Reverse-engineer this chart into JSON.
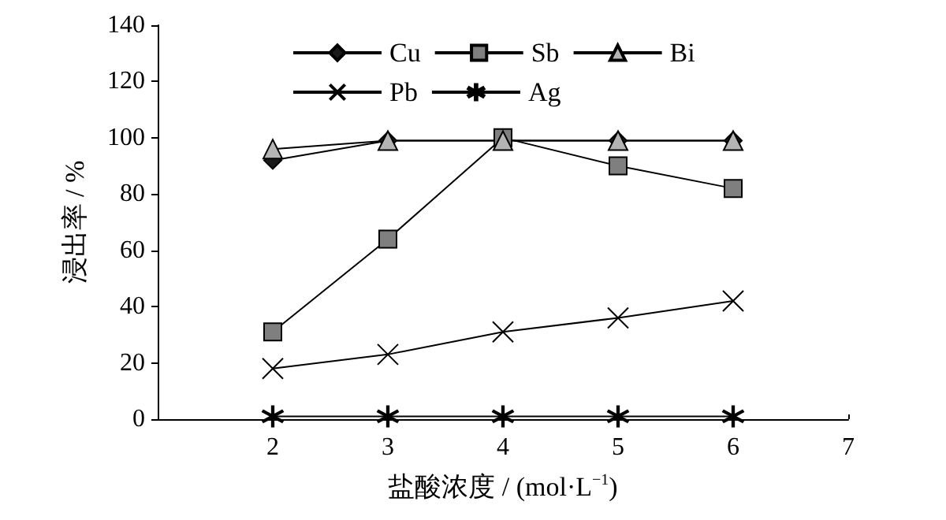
{
  "chart_data": {
    "type": "line",
    "xlabel": "盐酸浓度 / (mol·L$^{−1}$)",
    "ylabel": "浸出率 / %",
    "x": [
      2,
      3,
      4,
      5,
      6
    ],
    "series": [
      {
        "name": "Cu",
        "color": "#1a1a1a",
        "marker": "diamond",
        "values": [
          92,
          99,
          99,
          99,
          99
        ]
      },
      {
        "name": "Sb",
        "color": "#7f7f7f",
        "marker": "square",
        "values": [
          31,
          64,
          100,
          90,
          82
        ]
      },
      {
        "name": "Bi",
        "color": "#b4b4b4",
        "marker": "triangle",
        "values": [
          96,
          99,
          99,
          99,
          99
        ]
      },
      {
        "name": "Pb",
        "color": "#000000",
        "marker": "cross",
        "values": [
          18,
          23,
          31,
          36,
          42
        ]
      },
      {
        "name": "Ag",
        "color": "#000000",
        "marker": "star",
        "values": [
          1,
          1,
          1,
          1,
          1
        ]
      }
    ],
    "xlim": [
      1,
      7
    ],
    "xticks": [
      2,
      3,
      4,
      5,
      6,
      7
    ],
    "ylim": [
      0,
      140
    ],
    "yticks": [
      0,
      20,
      40,
      60,
      80,
      100,
      120,
      140
    ],
    "grid": false,
    "legend": "top left",
    "line_style": "solid"
  }
}
